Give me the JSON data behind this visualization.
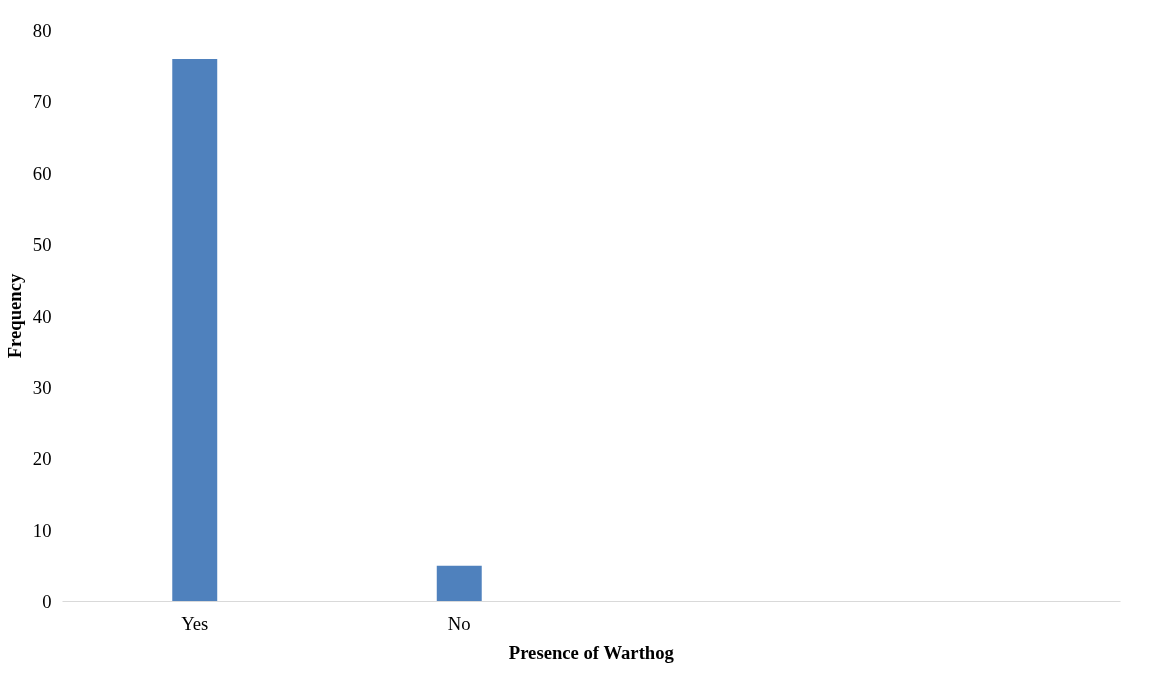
{
  "chart_data": {
    "type": "bar",
    "xlabel": "Presence of Warthog",
    "ylabel": "Frequency",
    "categories": [
      "Yes",
      "No",
      null,
      null
    ],
    "values": [
      76,
      5,
      null,
      null
    ],
    "color": "#4f81bd",
    "ylim": [
      0,
      80
    ],
    "yticks": [
      0,
      10,
      20,
      30,
      40,
      50,
      60,
      70,
      80
    ],
    "grid": false
  }
}
